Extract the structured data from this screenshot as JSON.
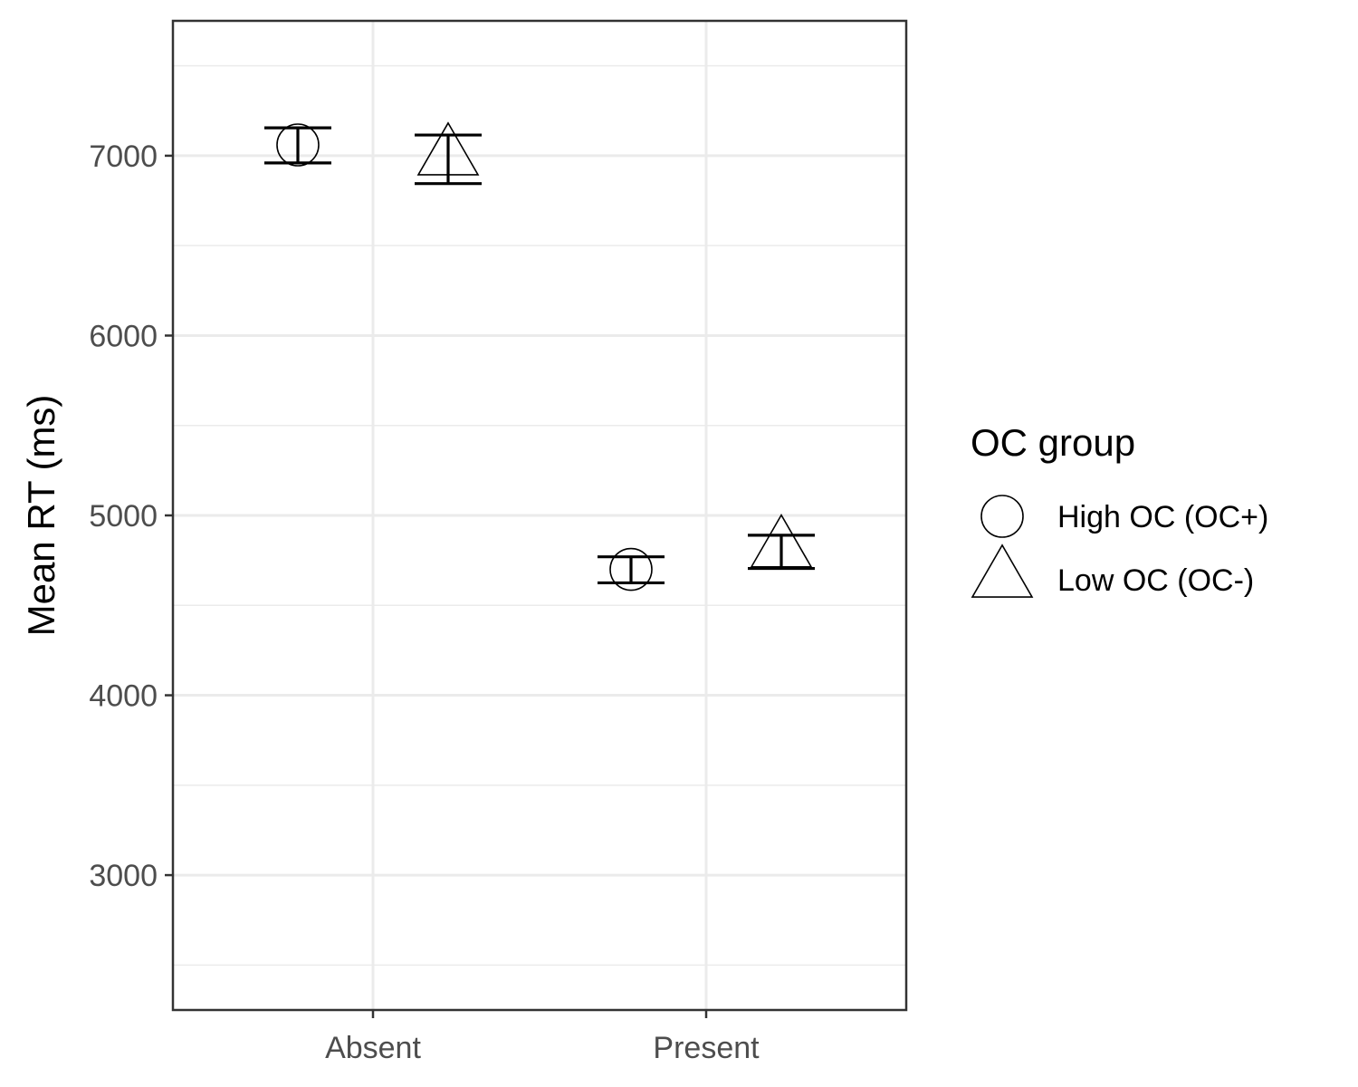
{
  "chart_data": {
    "type": "scatter",
    "title": "",
    "xlabel": "",
    "ylabel": "Mean RT (ms)",
    "categories": [
      "Absent",
      "Present"
    ],
    "ylim": [
      2250,
      7750
    ],
    "yticks": [
      3000,
      4000,
      5000,
      6000,
      7000
    ],
    "grid": true,
    "legend": {
      "title": "OC group",
      "position": "right"
    },
    "series": [
      {
        "name": "High OC (OC+)",
        "shape": "circle",
        "values": [
          7060,
          4700
        ],
        "error_low": [
          6960,
          4625
        ],
        "error_high": [
          7155,
          4770
        ]
      },
      {
        "name": "Low OC (OC-)",
        "shape": "triangle",
        "values": [
          6990,
          4810
        ],
        "error_low": [
          6845,
          4705
        ],
        "error_high": [
          7115,
          4890
        ]
      }
    ]
  }
}
